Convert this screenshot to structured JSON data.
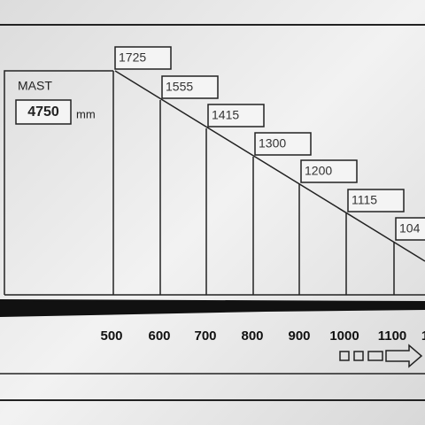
{
  "mast": {
    "label": "MAST",
    "value": "4750",
    "unit": "mm"
  },
  "capacities": [
    "1725",
    "1555",
    "1415",
    "1300",
    "1200",
    "1115",
    "104"
  ],
  "distances": [
    "500",
    "600",
    "700",
    "800",
    "900",
    "1000",
    "1100",
    "1"
  ]
}
